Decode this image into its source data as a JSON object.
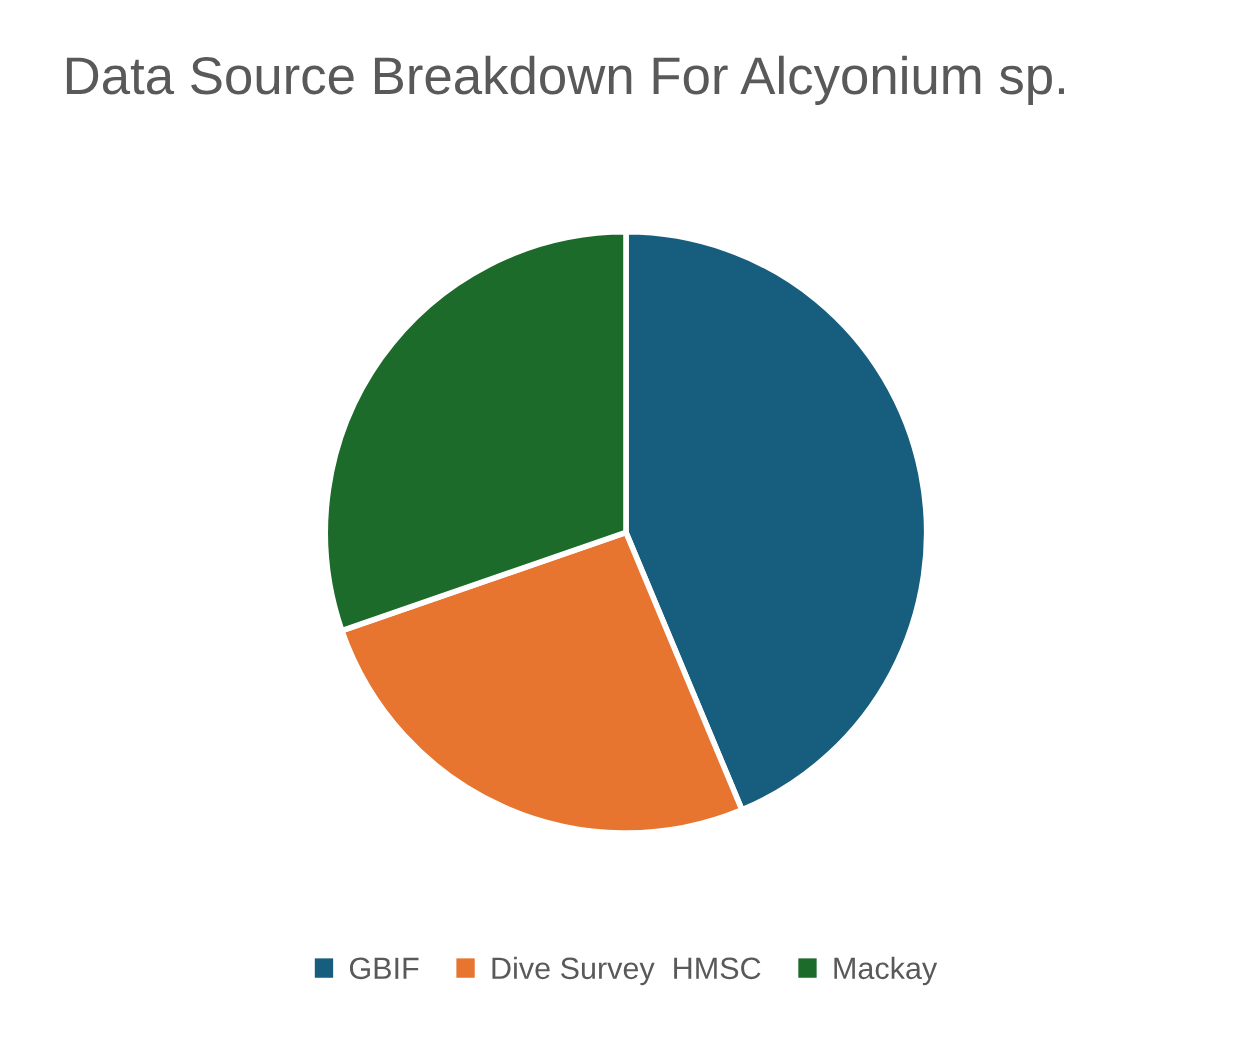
{
  "chart_data": {
    "type": "pie",
    "title": "Data Source Breakdown For Alcyonium sp.",
    "categories": [
      "GBIF",
      "Dive Survey  HMSC",
      "Mackay"
    ],
    "values": [
      43.7,
      26.0,
      30.3
    ],
    "colors": [
      "#175e7e",
      "#e77530",
      "#1c6b2b"
    ],
    "legend": "bottom"
  }
}
